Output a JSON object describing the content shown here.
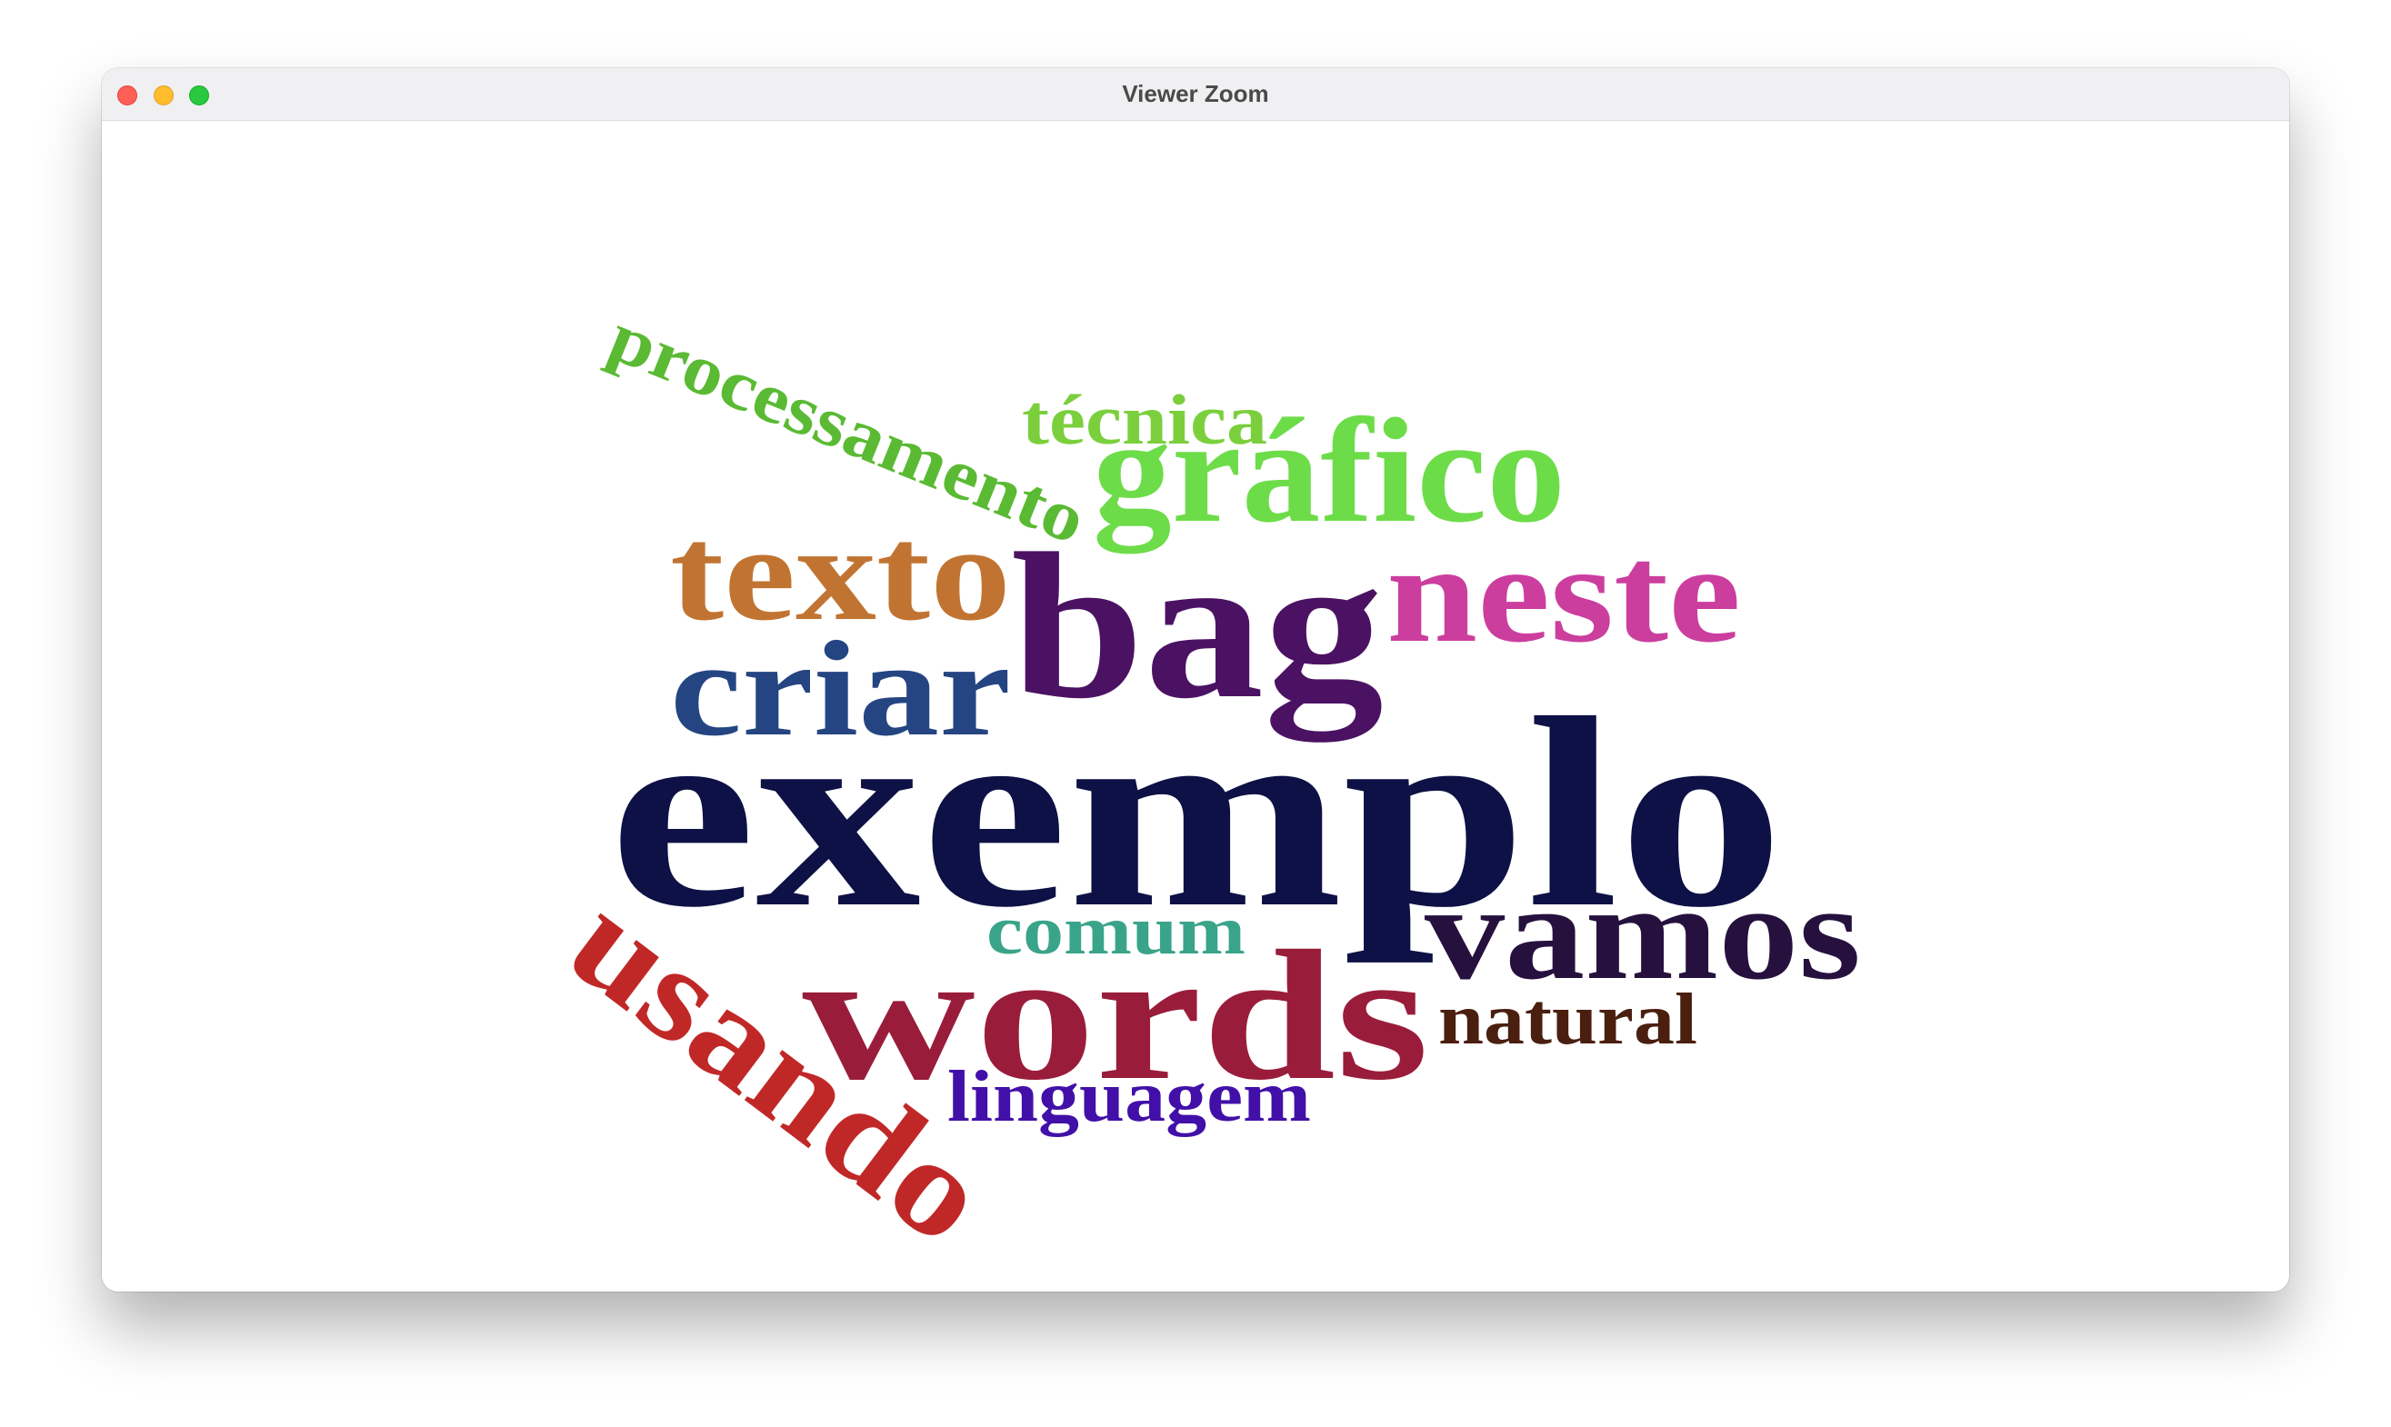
{
  "window": {
    "title": "Viewer Zoom",
    "controls": {
      "close": "close-icon",
      "minimize": "minimize-icon",
      "maximize": "maximize-icon"
    }
  },
  "wordcloud": {
    "words": [
      {
        "text": "exemplo",
        "color": "#0e1145"
      },
      {
        "text": "words",
        "color": "#991d3a"
      },
      {
        "text": "bag",
        "color": "#4b1263"
      },
      {
        "text": "usando",
        "color": "#c02827"
      },
      {
        "text": "gráfico",
        "color": "#6ddc49"
      },
      {
        "text": "neste",
        "color": "#cb3e9e"
      },
      {
        "text": "texto",
        "color": "#c17431"
      },
      {
        "text": "criar",
        "color": "#254582"
      },
      {
        "text": "vamos",
        "color": "#26113e"
      },
      {
        "text": "processamento",
        "color": "#5aba33"
      },
      {
        "text": "técnica",
        "color": "#7bcf3d"
      },
      {
        "text": "comum",
        "color": "#3aa48a"
      },
      {
        "text": "natural",
        "color": "#4a1f10"
      },
      {
        "text": "linguagem",
        "color": "#4210a8"
      }
    ]
  }
}
